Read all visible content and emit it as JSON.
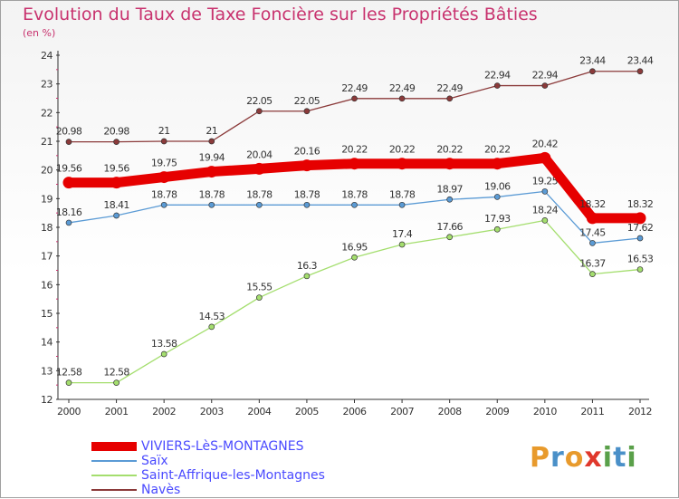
{
  "chart": {
    "title": "Evolution du Taux de Taxe Foncière sur les Propriétés Bâties",
    "subtitle": "(en %)"
  },
  "logo": {
    "text": "Proxiti"
  },
  "chart_data": {
    "type": "line",
    "title": "Evolution du Taux de Taxe Foncière sur les Propriétés Bâties",
    "ylabel": "(en %)",
    "xlabel": "",
    "ylim": [
      12,
      24
    ],
    "y_ticks": [
      12,
      13,
      14,
      15,
      16,
      17,
      18,
      19,
      20,
      21,
      22,
      23,
      24
    ],
    "grid": false,
    "legend_position": "bottom",
    "x": [
      2000,
      2001,
      2002,
      2003,
      2004,
      2005,
      2006,
      2007,
      2008,
      2009,
      2010,
      2011,
      2012
    ],
    "series": [
      {
        "name": "VIVIERS-LèS-MONTAGNES",
        "color": "#e60000",
        "values": [
          19.56,
          19.56,
          19.75,
          19.94,
          20.04,
          20.16,
          20.22,
          20.22,
          20.22,
          20.22,
          20.42,
          18.32,
          18.32
        ]
      },
      {
        "name": "Saïx",
        "color": "#5b9bd5",
        "values": [
          18.16,
          18.41,
          18.78,
          18.78,
          18.78,
          18.78,
          18.78,
          18.78,
          18.97,
          19.06,
          19.25,
          17.45,
          17.62
        ]
      },
      {
        "name": "Saint-Affrique-les-Montagnes",
        "color": "#a4de6e",
        "values": [
          12.58,
          12.58,
          13.58,
          14.53,
          15.55,
          16.3,
          16.95,
          17.4,
          17.66,
          17.93,
          18.24,
          16.37,
          16.53
        ]
      },
      {
        "name": "Navès",
        "color": "#8b3a3a",
        "values": [
          20.98,
          20.98,
          21,
          21,
          22.05,
          22.05,
          22.49,
          22.49,
          22.49,
          22.94,
          22.94,
          23.44,
          23.44
        ]
      }
    ]
  }
}
